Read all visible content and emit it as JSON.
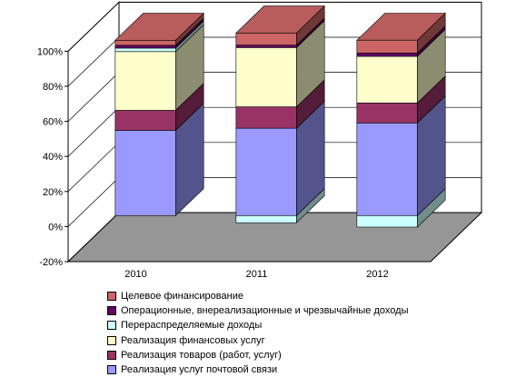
{
  "chart_data": {
    "type": "bar",
    "stacked": true,
    "three_d": true,
    "categories": [
      "2010",
      "2011",
      "2012"
    ],
    "y_ticks": [
      "-20%",
      "0%",
      "20%",
      "40%",
      "60%",
      "80%",
      "100%"
    ],
    "ylim": [
      -20,
      100
    ],
    "grid": true,
    "legend_position": "bottom",
    "series": [
      {
        "name": "Реализация услуг почтовой связи",
        "values": [
          48.6,
          49.8,
          52.8
        ],
        "color": "#9999ff"
      },
      {
        "name": "Реализация товаров (работ, услуг)",
        "values": [
          11.4,
          12.2,
          11.4
        ],
        "color": "#993366"
      },
      {
        "name": "Реализация финансовых услуг",
        "values": [
          33.5,
          33.8,
          26.6
        ],
        "color": "#ffffcc"
      },
      {
        "name": "Перераспределяемые доходы",
        "values": [
          2.0,
          -4.1,
          -6.6
        ],
        "color": "#ccffff"
      },
      {
        "name": "Операционные, внереализационные и чрезвычайные доходы",
        "values": [
          1.6,
          1.4,
          1.9
        ],
        "color": "#660066"
      },
      {
        "name": "Целевое финансирование",
        "values": [
          2.9,
          6.9,
          7.3
        ],
        "color": "#cc6666"
      }
    ],
    "colors": {
      "floor": "#969696",
      "grid": "#000000"
    }
  }
}
